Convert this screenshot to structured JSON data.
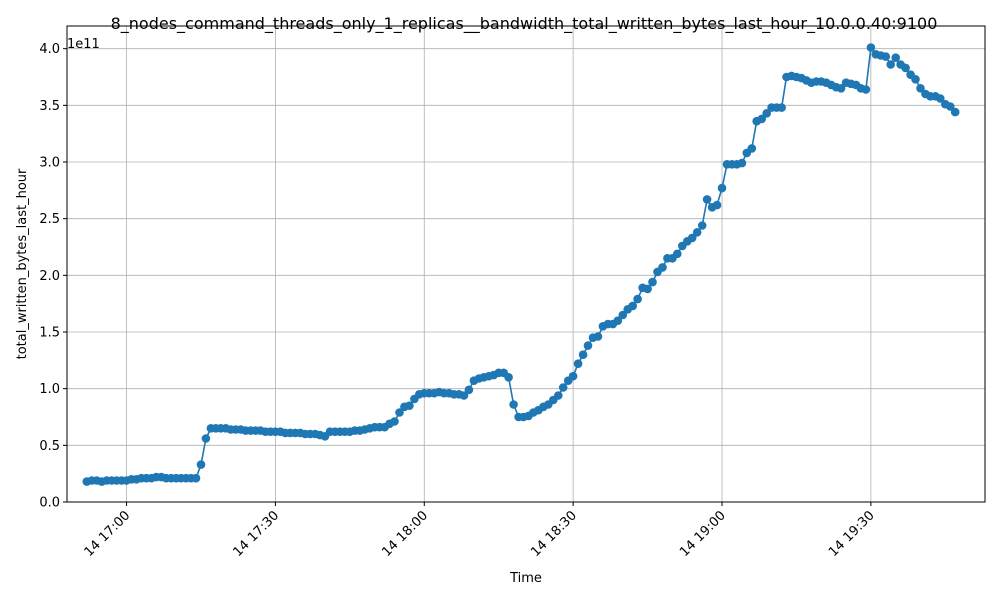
{
  "chart_data": {
    "type": "line",
    "title": "8_nodes_command_threads_only_1_replicas__bandwidth_total_written_bytes_last_hour_10.0.0.40:9100",
    "xlabel": "Time",
    "ylabel": "total_written_bytes_last_hour",
    "y_multiplier_label": "1e11",
    "x_start_time": "16:52",
    "x_step_minutes": 1,
    "xlim": [
      "16:48",
      "19:53"
    ],
    "ylim": [
      0,
      4.2
    ],
    "x_tick_labels": [
      "14 17:00",
      "14 17:30",
      "14 18:00",
      "14 18:30",
      "14 19:00",
      "14 19:30"
    ],
    "x_tick_values": [
      "17:00",
      "17:30",
      "18:00",
      "18:30",
      "19:00",
      "19:30"
    ],
    "y_tick_labels": [
      "0.0",
      "0.5",
      "1.0",
      "1.5",
      "2.0",
      "2.5",
      "3.0",
      "3.5",
      "4.0"
    ],
    "y_tick_values": [
      0.0,
      0.5,
      1.0,
      1.5,
      2.0,
      2.5,
      3.0,
      3.5,
      4.0
    ],
    "grid": true,
    "color": "#1f77b4",
    "series": [
      {
        "values": [
          0.18,
          0.19,
          0.19,
          0.18,
          0.19,
          0.19,
          0.19,
          0.19,
          0.19,
          0.2,
          0.2,
          0.21,
          0.21,
          0.21,
          0.22,
          0.22,
          0.21,
          0.21,
          0.21,
          0.21,
          0.21,
          0.21,
          0.21,
          0.33,
          0.56,
          0.65,
          0.65,
          0.65,
          0.65,
          0.64,
          0.64,
          0.64,
          0.63,
          0.63,
          0.63,
          0.63,
          0.62,
          0.62,
          0.62,
          0.62,
          0.61,
          0.61,
          0.61,
          0.61,
          0.6,
          0.6,
          0.6,
          0.59,
          0.58,
          0.62,
          0.62,
          0.62,
          0.62,
          0.62,
          0.63,
          0.63,
          0.64,
          0.65,
          0.66,
          0.66,
          0.66,
          0.69,
          0.71,
          0.79,
          0.84,
          0.85,
          0.91,
          0.95,
          0.96,
          0.96,
          0.96,
          0.97,
          0.96,
          0.96,
          0.95,
          0.95,
          0.94,
          0.99,
          1.07,
          1.09,
          1.1,
          1.11,
          1.12,
          1.14,
          1.14,
          1.1,
          0.86,
          0.75,
          0.75,
          0.76,
          0.79,
          0.81,
          0.84,
          0.86,
          0.9,
          0.94,
          1.01,
          1.07,
          1.11,
          1.22,
          1.3,
          1.38,
          1.45,
          1.46,
          1.55,
          1.57,
          1.57,
          1.6,
          1.65,
          1.7,
          1.73,
          1.79,
          1.89,
          1.88,
          1.94,
          2.03,
          2.07,
          2.15,
          2.15,
          2.19,
          2.26,
          2.3,
          2.33,
          2.38,
          2.44,
          2.67,
          2.6,
          2.62,
          2.77,
          2.98,
          2.98,
          2.98,
          2.99,
          3.08,
          3.12,
          3.36,
          3.38,
          3.43,
          3.48,
          3.48,
          3.48,
          3.75,
          3.76,
          3.75,
          3.74,
          3.72,
          3.7,
          3.71,
          3.71,
          3.7,
          3.68,
          3.66,
          3.65,
          3.7,
          3.69,
          3.68,
          3.65,
          3.64,
          4.01,
          3.95,
          3.94,
          3.93,
          3.86,
          3.92,
          3.86,
          3.83,
          3.77,
          3.73,
          3.65,
          3.6,
          3.58,
          3.58,
          3.56,
          3.51,
          3.49,
          3.44
        ]
      }
    ]
  }
}
